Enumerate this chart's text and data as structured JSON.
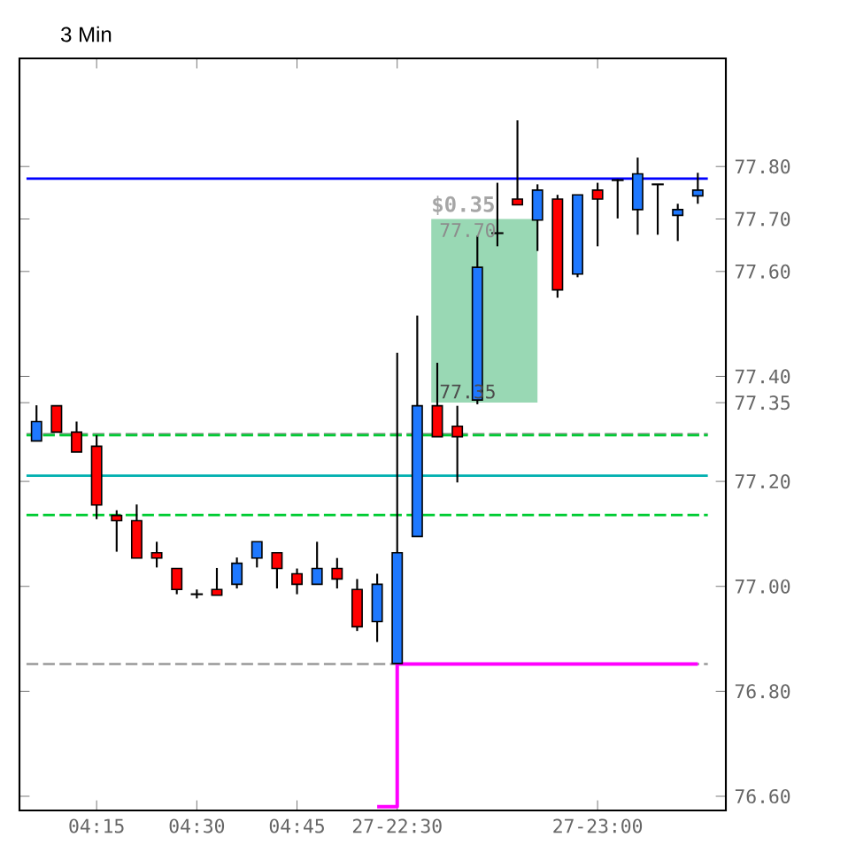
{
  "chart_data": {
    "type": "candlestick",
    "title": "3 Min",
    "categories": [
      null,
      null,
      null,
      "04:15",
      null,
      null,
      null,
      null,
      "04:30",
      null,
      null,
      null,
      null,
      "04:45",
      null,
      null,
      null,
      null,
      "27-22:30",
      null,
      null,
      null,
      null,
      null,
      null,
      null,
      null,
      null,
      "27-23:00",
      null,
      null,
      null,
      null,
      null
    ],
    "ohlc": [
      [
        77.277,
        77.345,
        77.277,
        77.314
      ],
      [
        77.344,
        77.344,
        77.294,
        77.294
      ],
      [
        77.294,
        77.314,
        77.256,
        77.256
      ],
      [
        77.267,
        77.288,
        77.128,
        77.155
      ],
      [
        77.135,
        77.145,
        77.066,
        77.125
      ],
      [
        77.125,
        77.156,
        77.054,
        77.054
      ],
      [
        77.064,
        77.085,
        77.036,
        77.054
      ],
      [
        77.034,
        77.034,
        76.985,
        76.994
      ],
      [
        76.985,
        76.994,
        76.977,
        76.985
      ],
      [
        76.994,
        77.035,
        76.983,
        76.983
      ],
      [
        77.004,
        77.055,
        76.996,
        77.044
      ],
      [
        77.054,
        77.085,
        77.036,
        77.085
      ],
      [
        77.064,
        77.064,
        76.996,
        77.034
      ],
      [
        77.024,
        77.034,
        76.985,
        77.004
      ],
      [
        77.004,
        77.085,
        77.004,
        77.034
      ],
      [
        77.034,
        77.054,
        76.996,
        77.014
      ],
      [
        76.994,
        77.014,
        76.915,
        76.923
      ],
      [
        76.933,
        77.024,
        76.894,
        77.004
      ],
      [
        76.853,
        77.445,
        76.853,
        77.064
      ],
      [
        77.095,
        77.516,
        77.095,
        77.344
      ],
      [
        77.344,
        77.426,
        77.285,
        77.285
      ],
      [
        77.305,
        77.344,
        77.198,
        77.285
      ],
      [
        77.355,
        77.668,
        77.347,
        77.608
      ],
      [
        77.673,
        77.769,
        77.648,
        77.673
      ],
      [
        77.738,
        77.888,
        77.727,
        77.727
      ],
      [
        77.698,
        77.766,
        77.639,
        77.755
      ],
      [
        77.738,
        77.746,
        77.55,
        77.565
      ],
      [
        77.595,
        77.746,
        77.589,
        77.746
      ],
      [
        77.755,
        77.769,
        77.648,
        77.738
      ],
      [
        77.774,
        77.776,
        77.701,
        77.774
      ],
      [
        77.718,
        77.817,
        77.67,
        77.786
      ],
      [
        77.766,
        77.766,
        77.67,
        77.766
      ],
      [
        77.707,
        77.729,
        77.658,
        77.718
      ],
      [
        77.744,
        77.788,
        77.729,
        77.755
      ]
    ],
    "colors": [
      "#1e78ff",
      "#ff0000",
      "#ff0000",
      "#ff0000",
      "#ff0000",
      "#ff0000",
      "#ff0000",
      "#ff0000",
      "#000000",
      "#ff0000",
      "#1e78ff",
      "#1e78ff",
      "#ff0000",
      "#ff0000",
      "#1e78ff",
      "#ff0000",
      "#ff0000",
      "#1e78ff",
      "#1e78ff",
      "#1e78ff",
      "#ff0000",
      "#ff0000",
      "#1e78ff",
      "#000000",
      "#ff0000",
      "#1e78ff",
      "#ff0000",
      "#1e78ff",
      "#ff0000",
      "#000000",
      "#1e78ff",
      "#000000",
      "#1e78ff",
      "#1e78ff"
    ],
    "series": [
      {
        "type": "step",
        "color": "#ff00ff",
        "values": [
          null,
          null,
          null,
          null,
          null,
          null,
          null,
          null,
          null,
          null,
          null,
          null,
          null,
          null,
          null,
          null,
          null,
          76.58,
          76.852,
          76.852,
          76.852,
          76.852,
          76.852,
          76.852,
          76.852,
          76.852,
          76.852,
          76.852,
          76.852,
          76.852,
          76.852,
          76.852,
          76.852,
          76.852
        ]
      }
    ],
    "ref_lines": [
      {
        "axis": "y",
        "value": 77.777,
        "color": "#0000ff",
        "line_style": "solid"
      },
      {
        "axis": "y",
        "value": 77.29,
        "color": "#999999",
        "line_style": "dashed"
      },
      {
        "axis": "y",
        "value": 77.288,
        "color": "#00cc33",
        "line_style": "dashed"
      },
      {
        "axis": "y",
        "value": 77.211,
        "color": "#00b0b0",
        "line_style": "solid"
      },
      {
        "axis": "y",
        "value": 77.136,
        "color": "#00cc33",
        "line_style": "dashed"
      },
      {
        "axis": "y",
        "value": 76.852,
        "color": "#999999",
        "line_style": "dashed"
      }
    ],
    "annotations": [
      "$0.35",
      "77.70",
      "77.35"
    ],
    "bands": [
      {
        "axis": "y",
        "from": 77.35,
        "to": 77.7,
        "color": "#99d8b4"
      }
    ],
    "ylim": [
      76.573,
      78.006
    ],
    "yticks": [
      {
        "value": 76.6,
        "label": "76.60"
      },
      {
        "value": 76.8,
        "label": "76.80"
      },
      {
        "value": 77.0,
        "label": "77.00"
      },
      {
        "value": 77.2,
        "label": "77.20"
      },
      {
        "value": 77.35,
        "label": "77.35"
      },
      {
        "value": 77.4,
        "label": "77.40"
      },
      {
        "value": 77.6,
        "label": "77.60"
      },
      {
        "value": 77.7,
        "label": "77.70"
      },
      {
        "value": 77.8,
        "label": "77.80"
      }
    ],
    "grid": false
  }
}
